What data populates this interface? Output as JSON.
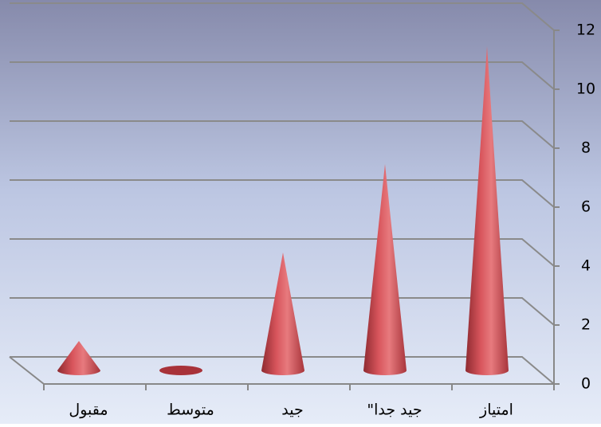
{
  "chart_data": {
    "type": "cone",
    "categories": [
      "مقبول",
      "متوسط",
      "جيد",
      "جيد جدا\"",
      "امتياز"
    ],
    "values": [
      1,
      0,
      4,
      7,
      11
    ],
    "color": "#c0404a",
    "ylim": [
      0,
      12
    ],
    "yticks": [
      0,
      2,
      4,
      6,
      8,
      10,
      12
    ],
    "grid": true
  }
}
